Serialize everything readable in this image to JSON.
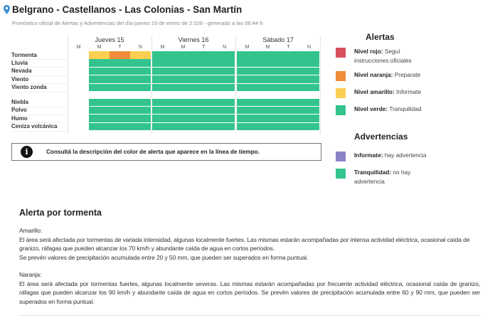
{
  "header": {
    "title": "Belgrano - Castellanos - Las Colonias - San Martín",
    "subtitle": "Pronóstico oficial de Alertas y Advertencias del día jueves 15 de enero de 2.026 - generado a las 06:44 h"
  },
  "colors": {
    "rojo": "#d9505c",
    "naranja": "#f08c3a",
    "amarillo": "#fbcf52",
    "verde": "#33c48e",
    "violeta": "#8a84c6"
  },
  "timeline": {
    "days": [
      {
        "label": "Jueves 15",
        "slots": [
          "M",
          "M",
          "T",
          "N"
        ]
      },
      {
        "label": "Viernes 16",
        "slots": [
          "M",
          "M",
          "T",
          "N"
        ]
      },
      {
        "label": "Sábado 17",
        "slots": [
          "M",
          "M",
          "T",
          "N"
        ]
      }
    ],
    "alert_rows": [
      {
        "label": "Tormenta",
        "levels": [
          null,
          "amarillo",
          "naranja",
          "amarillo",
          "verde",
          "verde",
          "verde",
          "verde",
          "verde",
          "verde",
          "verde",
          "verde"
        ]
      },
      {
        "label": "Lluvia",
        "levels": [
          null,
          "verde",
          "verde",
          "verde",
          "verde",
          "verde",
          "verde",
          "verde",
          "verde",
          "verde",
          "verde",
          "verde"
        ]
      },
      {
        "label": "Nevada",
        "levels": [
          null,
          "verde",
          "verde",
          "verde",
          "verde",
          "verde",
          "verde",
          "verde",
          "verde",
          "verde",
          "verde",
          "verde"
        ]
      },
      {
        "label": "Viento",
        "levels": [
          null,
          "verde",
          "verde",
          "verde",
          "verde",
          "verde",
          "verde",
          "verde",
          "verde",
          "verde",
          "verde",
          "verde"
        ]
      },
      {
        "label": "Viento zonda",
        "levels": [
          null,
          "verde",
          "verde",
          "verde",
          "verde",
          "verde",
          "verde",
          "verde",
          "verde",
          "verde",
          "verde",
          "verde"
        ]
      }
    ],
    "warning_rows": [
      {
        "label": "Niebla",
        "levels": [
          null,
          "verde",
          "verde",
          "verde",
          "verde",
          "verde",
          "verde",
          "verde",
          "verde",
          "verde",
          "verde",
          "verde"
        ]
      },
      {
        "label": "Polvo",
        "levels": [
          null,
          "verde",
          "verde",
          "verde",
          "verde",
          "verde",
          "verde",
          "verde",
          "verde",
          "verde",
          "verde",
          "verde"
        ]
      },
      {
        "label": "Humo",
        "levels": [
          null,
          "verde",
          "verde",
          "verde",
          "verde",
          "verde",
          "verde",
          "verde",
          "verde",
          "verde",
          "verde",
          "verde"
        ]
      },
      {
        "label": "Ceniza volcánica",
        "levels": [
          null,
          "verde",
          "verde",
          "verde",
          "verde",
          "verde",
          "verde",
          "verde",
          "verde",
          "verde",
          "verde",
          "verde"
        ]
      }
    ]
  },
  "info": {
    "icon": "info-icon",
    "text": "Consultá la descripción del color de alerta que aparece en la línea de tiempo."
  },
  "legend": {
    "alertas_title": "Alertas",
    "alertas": [
      {
        "color": "rojo",
        "bold": "Nivel rojo:",
        "text": " Seguí instrucciones oficiales"
      },
      {
        "color": "naranja",
        "bold": "Nivel naranja:",
        "text": " Preparate"
      },
      {
        "color": "amarillo",
        "bold": "Nivel amarillo:",
        "text": " Informate"
      },
      {
        "color": "verde",
        "bold": "Nivel verde:",
        "text": " Tranquilidad"
      }
    ],
    "advertencias_title": "Advertencias",
    "advertencias": [
      {
        "color": "violeta",
        "bold": "Informate:",
        "text": " hay advertencia"
      },
      {
        "color": "verde",
        "bold": "Tranquilidad:",
        "text": " no hay advertencia"
      }
    ]
  },
  "section": {
    "title": "Alerta por tormenta",
    "amarillo_label": "Amarillo:",
    "amarillo_text": "El área será afectada por tormentas de variada intensidad, algunas localmente fuertes. Las mismas estarán acompañadas por intensa actividad eléctrica, ocasional caída de granizo, ráfagas que pueden alcanzar los 70 km/h y abundante caída de agua en cortos períodos.",
    "amarillo_text2": "Se prevén valores de precipitación acumulada entre 20 y 50 mm, que pueden ser superados en forma puntual.",
    "naranja_label": "Naranja:",
    "naranja_text": "El área será afectada por tormentas fuertes, algunas localmente severas. Las mismas estarán acompañadas por frecuente actividad eléctrica, ocasional caída de granizo, ráfagas que pueden alcanzar los 90 km/h y abundante caída de agua en cortos períodos. Se prevén valores de precipitación acumulada entre 60 y 90 mm, que pueden ser superados en forma puntual."
  }
}
